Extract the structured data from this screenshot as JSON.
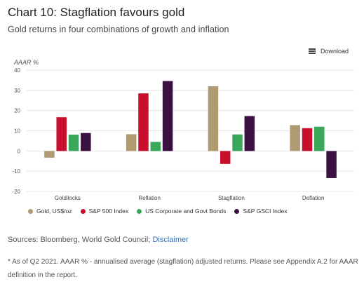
{
  "header": {
    "title": "Chart 10: Stagflation favours gold",
    "subtitle": "Gold returns in four combinations of growth and inflation"
  },
  "toolbar": {
    "download_label": "Download",
    "download_icon": "menu-icon"
  },
  "chart_data": {
    "type": "bar",
    "ylabel": "AAAR %",
    "ylim": [
      -20,
      40
    ],
    "yticks": [
      40,
      30,
      20,
      10,
      0,
      -10,
      -20
    ],
    "grid": "y",
    "legend_position": "bottom",
    "categories": [
      "Goldilocks",
      "Reflation",
      "Stagflation",
      "Deflation"
    ],
    "series": [
      {
        "name": "Gold, US$/oz",
        "color": "#b09a72",
        "values": [
          -3.3,
          8.3,
          32.0,
          12.8
        ]
      },
      {
        "name": "S&P 500 Index",
        "color": "#c8102e",
        "values": [
          16.7,
          28.5,
          -6.4,
          11.3
        ]
      },
      {
        "name": "US Corporate and Govt Bonds",
        "color": "#3aa85a",
        "values": [
          8.1,
          4.5,
          8.2,
          12.0
        ]
      },
      {
        "name": "S&P GSCI Index",
        "color": "#3b1142",
        "values": [
          8.9,
          34.6,
          17.3,
          -13.4
        ]
      }
    ]
  },
  "sources": {
    "text": "Sources: Bloomberg, World Gold Council; ",
    "link_label": "Disclaimer"
  },
  "footnote": {
    "text": "* As of Q2 2021. AAAR % - annualised average (stagflation) adjusted returns. Please see Appendix A.2 for AAAR definition in the report."
  }
}
